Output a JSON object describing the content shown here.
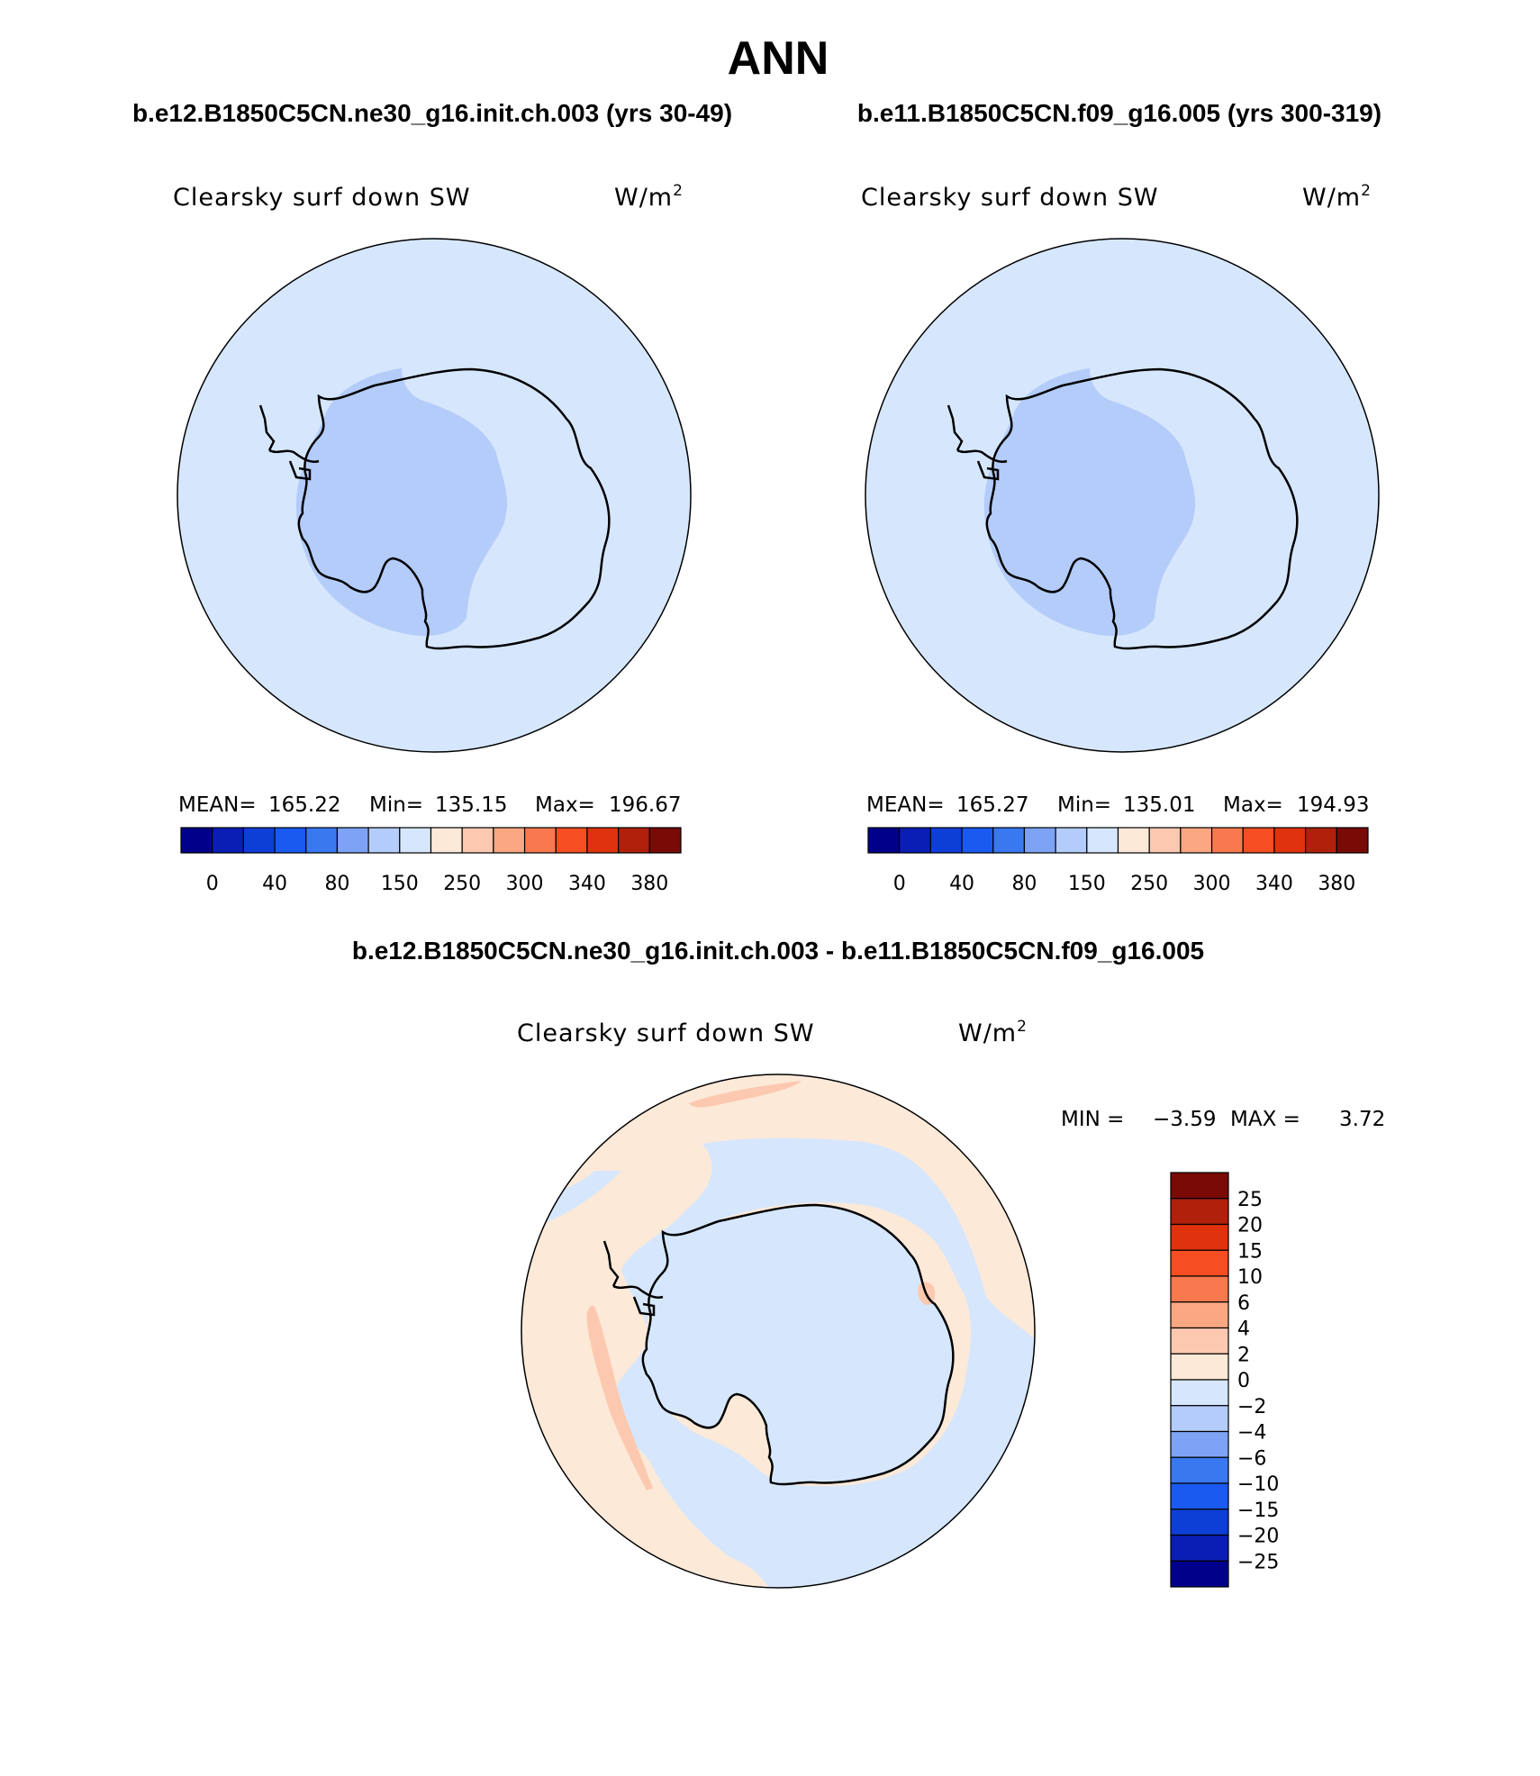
{
  "title": "ANN",
  "panels": [
    {
      "case_title": "b.e12.B1850C5CN.ne30_g16.init.ch.003 (yrs 30-49)",
      "variable": "Clearsky surf down SW",
      "units_base": "W/m",
      "units_exp": "2",
      "stats": {
        "mean_label": "MEAN=",
        "mean": "165.22",
        "min_label": "Min=",
        "min": "135.15",
        "max_label": "Max=",
        "max": "196.67"
      }
    },
    {
      "case_title": "b.e11.B1850C5CN.f09_g16.005 (yrs 300-319)",
      "variable": "Clearsky surf down SW",
      "units_base": "W/m",
      "units_exp": "2",
      "stats": {
        "mean_label": "MEAN=",
        "mean": "165.27",
        "min_label": "Min=",
        "min": "135.01",
        "max_label": "Max=",
        "max": "194.93"
      }
    },
    {
      "case_title": "b.e12.B1850C5CN.ne30_g16.init.ch.003 - b.e11.B1850C5CN.f09_g16.005",
      "variable": "Clearsky surf down SW",
      "units_base": "W/m",
      "units_exp": "2",
      "stats": {
        "min_label": "MIN =",
        "min": "−3.59",
        "max_label": "MAX =",
        "max": "3.72"
      }
    }
  ],
  "colorbar_abs": {
    "colors": [
      "#00008b",
      "#0a1eb5",
      "#0d3fd6",
      "#1a5af0",
      "#3a78f0",
      "#7ea3f5",
      "#b4ccfa",
      "#d6e7fd",
      "#fde9d8",
      "#fcc9b0",
      "#fba882",
      "#f8794e",
      "#f44e22",
      "#e1320e",
      "#b0200b",
      "#7a0a06"
    ],
    "tick_labels": [
      "0",
      "40",
      "80",
      "150",
      "250",
      "300",
      "340",
      "380"
    ]
  },
  "colorbar_diff": {
    "colors_top_to_bottom": [
      "#7a0a06",
      "#b0200b",
      "#e1320e",
      "#f44e22",
      "#f8794e",
      "#fba882",
      "#fcc9b0",
      "#fde9d8",
      "#d6e7fd",
      "#b4ccfa",
      "#7ea3f5",
      "#3a78f0",
      "#1a5af0",
      "#0d3fd6",
      "#0a1eb5",
      "#00008b"
    ],
    "tick_labels_top_to_bottom": [
      "25",
      "20",
      "15",
      "10",
      "6",
      "4",
      "2",
      "0",
      "−2",
      "−4",
      "−6",
      "−10",
      "−15",
      "−20",
      "−25"
    ]
  },
  "map_fill_colors": {
    "ocean": "#d6e7fd",
    "low": "#b4ccfa",
    "diff_positive": "#fde9d8",
    "diff_positive_2": "#fcc9b0",
    "diff_negative": "#d6e7fd"
  }
}
